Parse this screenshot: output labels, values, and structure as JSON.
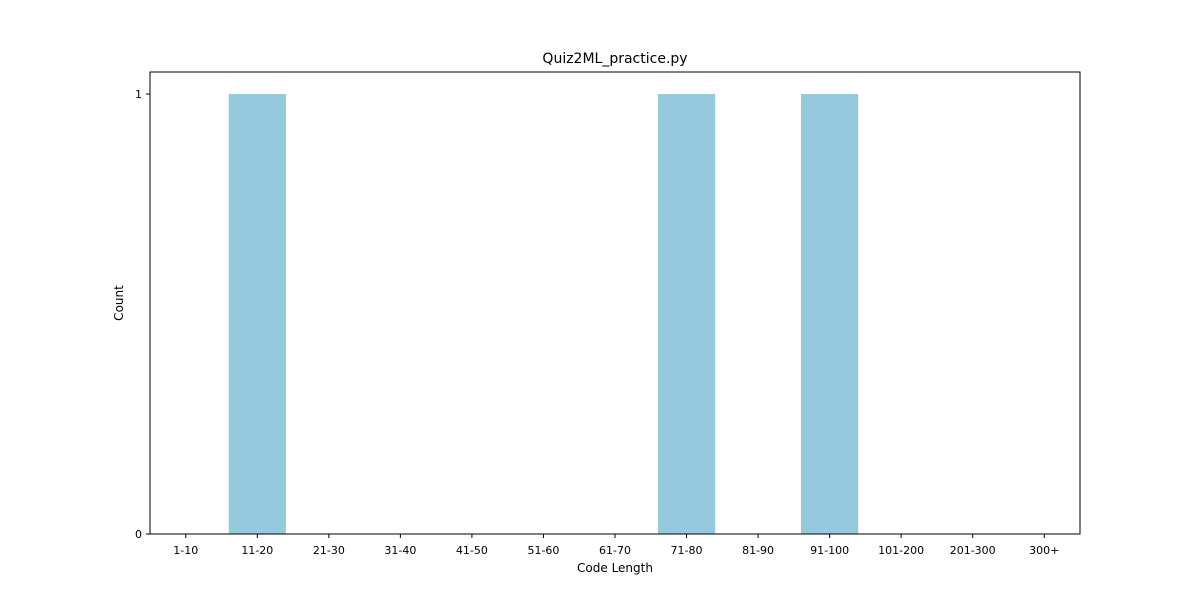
{
  "chart_data": {
    "type": "bar",
    "title": "Quiz2ML_practice.py",
    "xlabel": "Code Length",
    "ylabel": "Count",
    "categories": [
      "1-10",
      "11-20",
      "21-30",
      "31-40",
      "41-50",
      "51-60",
      "61-70",
      "71-80",
      "81-90",
      "91-100",
      "101-200",
      "201-300",
      "300+"
    ],
    "values": [
      0,
      1,
      0,
      0,
      0,
      0,
      0,
      1,
      0,
      1,
      0,
      0,
      0
    ],
    "ylim": [
      0,
      1.05
    ],
    "yticks": [
      0,
      1
    ],
    "grid": false,
    "bar_color": "#96c9dd"
  }
}
